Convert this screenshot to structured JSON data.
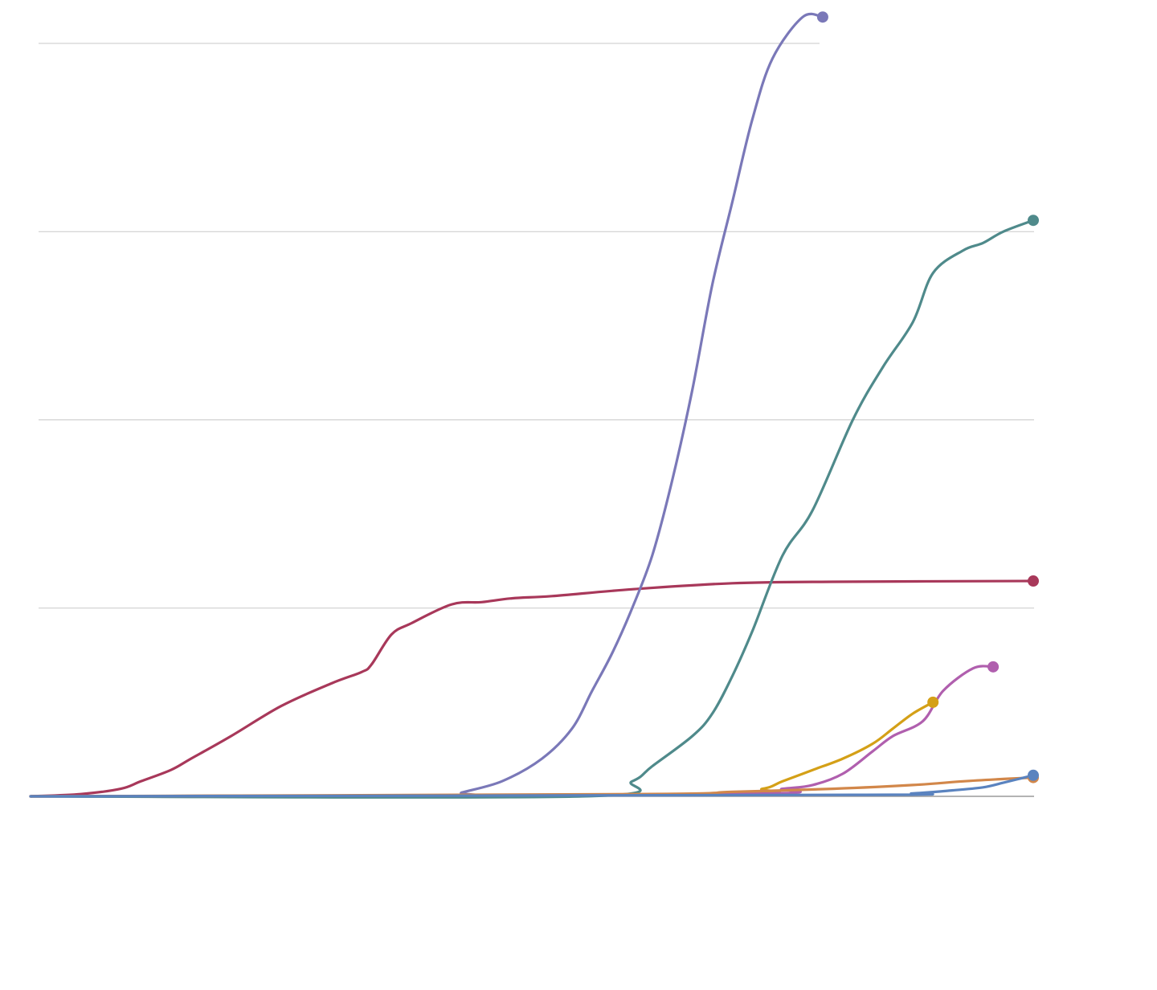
{
  "chart_data": {
    "type": "line",
    "title": "",
    "xlabel": "",
    "ylabel": "",
    "x_range": [
      0,
      100
    ],
    "ylim": [
      0,
      100
    ],
    "gridlines_y": [
      25,
      50,
      75,
      100
    ],
    "grid": true,
    "legend": "none",
    "end_markers": true,
    "series": [
      {
        "color": "#a8385a",
        "points": [
          [
            0,
            0
          ],
          [
            5,
            0.3
          ],
          [
            9,
            1
          ],
          [
            11,
            2
          ],
          [
            14,
            3.5
          ],
          [
            16,
            5
          ],
          [
            20,
            8
          ],
          [
            25,
            12
          ],
          [
            30,
            15
          ],
          [
            33,
            16.5
          ],
          [
            34,
            17.5
          ],
          [
            36,
            21.5
          ],
          [
            38,
            23
          ],
          [
            42,
            25.5
          ],
          [
            45,
            25.8
          ],
          [
            48,
            26.3
          ],
          [
            52,
            26.6
          ],
          [
            60,
            27.5
          ],
          [
            70,
            28.3
          ],
          [
            80,
            28.5
          ],
          [
            100,
            28.6
          ]
        ]
      },
      {
        "color": "#7a78b8",
        "points": [
          [
            0,
            0
          ],
          [
            42,
            0
          ],
          [
            43,
            0.5
          ],
          [
            47,
            2
          ],
          [
            51,
            5
          ],
          [
            54,
            9
          ],
          [
            56,
            14
          ],
          [
            58,
            19
          ],
          [
            60,
            25
          ],
          [
            62,
            32
          ],
          [
            64,
            42
          ],
          [
            66,
            54
          ],
          [
            68,
            68
          ],
          [
            70,
            79
          ],
          [
            72,
            90
          ],
          [
            74,
            98
          ],
          [
            77,
            103.5
          ],
          [
            79,
            103.5
          ]
        ]
      },
      {
        "color": "#4f8a8b",
        "points": [
          [
            0,
            0
          ],
          [
            55,
            0
          ],
          [
            60,
            2
          ],
          [
            62,
            4
          ],
          [
            66,
            8
          ],
          [
            68,
            11
          ],
          [
            70,
            16
          ],
          [
            72,
            22
          ],
          [
            75,
            32
          ],
          [
            78,
            38
          ],
          [
            82,
            50
          ],
          [
            85,
            57
          ],
          [
            88,
            63
          ],
          [
            90,
            69.5
          ],
          [
            93,
            72.5
          ],
          [
            95,
            73.5
          ],
          [
            97,
            75
          ],
          [
            100,
            76.5
          ]
        ]
      },
      {
        "color": "#d4a017",
        "points": [
          [
            0,
            0
          ],
          [
            68,
            0.3
          ],
          [
            73,
            1
          ],
          [
            75,
            2
          ],
          [
            78,
            3.5
          ],
          [
            81,
            5
          ],
          [
            84,
            7
          ],
          [
            86,
            9
          ],
          [
            88,
            11
          ],
          [
            90,
            12.5
          ]
        ]
      },
      {
        "color": "#b05fae",
        "points": [
          [
            0,
            0
          ],
          [
            70,
            0.3
          ],
          [
            75,
            1
          ],
          [
            78,
            1.5
          ],
          [
            81,
            3
          ],
          [
            84,
            6
          ],
          [
            86,
            8
          ],
          [
            89,
            10
          ],
          [
            91,
            14
          ],
          [
            94,
            17
          ],
          [
            96,
            17.2
          ]
        ]
      },
      {
        "color": "#d2874a",
        "points": [
          [
            0,
            0
          ],
          [
            60,
            0.3
          ],
          [
            70,
            0.6
          ],
          [
            80,
            1
          ],
          [
            88,
            1.5
          ],
          [
            93,
            2
          ],
          [
            97,
            2.3
          ],
          [
            100,
            2.5
          ]
        ]
      },
      {
        "color": "#5a83bf",
        "points": [
          [
            0,
            0
          ],
          [
            82,
            0.2
          ],
          [
            88,
            0.4
          ],
          [
            92,
            0.8
          ],
          [
            95,
            1.2
          ],
          [
            97,
            1.8
          ],
          [
            100,
            2.8
          ]
        ]
      }
    ]
  }
}
